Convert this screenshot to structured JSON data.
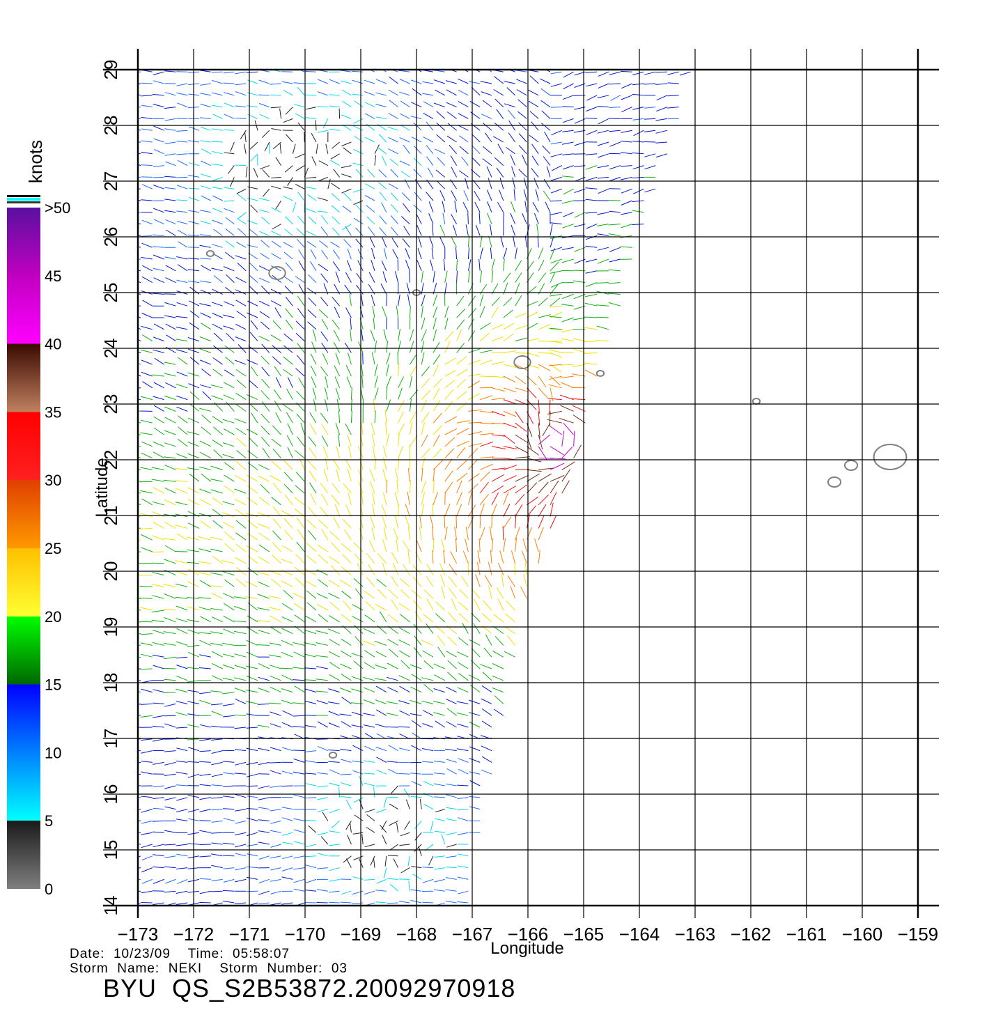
{
  "chart_data": {
    "type": "scatter",
    "title": "",
    "xlabel": "Longitude",
    "ylabel": "Latitude",
    "xlim": [
      -173,
      -159
    ],
    "ylim": [
      14,
      29
    ],
    "x_ticks": [
      "−173",
      "−172",
      "−171",
      "−170",
      "−169",
      "−168",
      "−167",
      "−166",
      "−165",
      "−164",
      "−163",
      "−162",
      "−161",
      "−160",
      "−159"
    ],
    "y_ticks": [
      "14",
      "15",
      "16",
      "17",
      "18",
      "19",
      "20",
      "21",
      "22",
      "23",
      "24",
      "25",
      "26",
      "27",
      "28",
      "29"
    ],
    "grid": true,
    "colorbar": {
      "title": "knots",
      "labels": [
        "0",
        "5",
        "10",
        "15",
        "20",
        "25",
        "30",
        "35",
        "40",
        "45",
        ">50"
      ],
      "range": [
        0,
        50
      ]
    },
    "wind_field": {
      "storm_center": [
        -165.5,
        22.3
      ],
      "swath_east_edge": [
        [
          -167,
          14.6
        ],
        [
          -166,
          19.5
        ],
        [
          -165,
          22.5
        ],
        [
          -164,
          25.9
        ],
        [
          -163,
          29.0
        ]
      ],
      "swath_west_edge_lon": -173,
      "max_speed_knots": 45
    },
    "islands": [
      {
        "lon": -171.7,
        "lat": 25.7
      },
      {
        "lon": -170.5,
        "lat": 25.35
      },
      {
        "lon": -168.0,
        "lat": 25.0
      },
      {
        "lon": -166.1,
        "lat": 23.75
      },
      {
        "lon": -164.7,
        "lat": 23.55
      },
      {
        "lon": -161.9,
        "lat": 23.05
      },
      {
        "lon": -160.5,
        "lat": 21.6
      },
      {
        "lon": -160.2,
        "lat": 21.9
      },
      {
        "lon": -159.5,
        "lat": 22.05
      },
      {
        "lon": -169.5,
        "lat": 16.7
      }
    ]
  },
  "footer": {
    "date_line": "Date:  10/23/09    Time:  05:58:07",
    "storm_line": "Storm  Name:  NEKI    Storm  Number:  03",
    "product_line": "BYU  QS_S2B53872.20092970918"
  },
  "colors": {
    "land": "#808080",
    "grid": "#000000",
    "scale": [
      "#7f7f7f",
      "#00ffff",
      "#0000ff",
      "#00ff00",
      "#ffff00",
      "#ff8c00",
      "#ff0000",
      "#8b4513",
      "#ff00ff",
      "#6a0dad"
    ]
  }
}
